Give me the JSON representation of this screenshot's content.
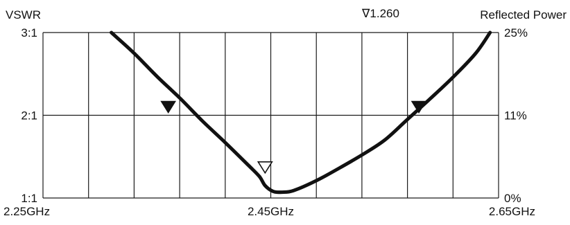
{
  "chart_data": {
    "type": "line",
    "title": "",
    "xlabel": "",
    "y_left_label": "VSWR",
    "y_right_label": "Reflected Power",
    "xlim": [
      2.25,
      2.65
    ],
    "ylim": [
      1.0,
      3.0
    ],
    "x_ticks": [
      {
        "value": 2.25,
        "label": "2.25GHz"
      },
      {
        "value": 2.45,
        "label": "2.45GHz"
      },
      {
        "value": 2.65,
        "label": "2.65GHz"
      }
    ],
    "y_left_ticks": [
      {
        "value": 3.0,
        "label": "3:1"
      },
      {
        "value": 2.0,
        "label": "2:1"
      },
      {
        "value": 1.0,
        "label": "1:1"
      }
    ],
    "y_right_ticks": [
      {
        "value": 3.0,
        "label": "25%"
      },
      {
        "value": 2.0,
        "label": "11%"
      },
      {
        "value": 1.0,
        "label": "0%"
      }
    ],
    "grid": {
      "x_divisions": 10,
      "y_divisions": 2
    },
    "series": [
      {
        "x": [
          2.31,
          2.33,
          2.35,
          2.37,
          2.39,
          2.41,
          2.43,
          2.44,
          2.445,
          2.452,
          2.46,
          2.47,
          2.49,
          2.51,
          2.53,
          2.55,
          2.57,
          2.59,
          2.61,
          2.63,
          2.6425
        ],
        "y": [
          3.0,
          2.75,
          2.47,
          2.21,
          1.93,
          1.67,
          1.4,
          1.26,
          1.15,
          1.08,
          1.07,
          1.09,
          1.21,
          1.36,
          1.52,
          1.7,
          1.95,
          2.2,
          2.46,
          2.75,
          3.0
        ]
      }
    ],
    "markers": [
      {
        "x": 2.36,
        "y": 2.1,
        "style": "filled"
      },
      {
        "x": 2.445,
        "y": 1.37,
        "style": "hollow",
        "label": "∇1.260"
      },
      {
        "x": 2.58,
        "y": 2.1,
        "style": "filled"
      }
    ],
    "colors": {
      "line": "#111111",
      "grid": "#1a1a1a"
    }
  }
}
